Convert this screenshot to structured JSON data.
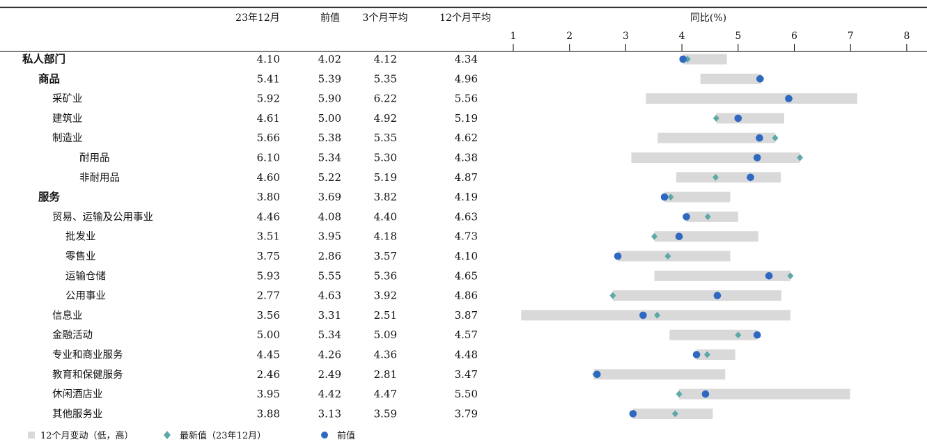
{
  "headers": {
    "col1": "23年12月",
    "col2": "前值",
    "col3": "3个月平均",
    "col4": "12个月平均",
    "chart": "同比(%)"
  },
  "legend": {
    "range": "12个月变动（低，高）",
    "latest": "最新值（23年12月）",
    "prev": "前值"
  },
  "colors": {
    "range_bar": "#d9d9d9",
    "latest_marker": "#5fa8a8",
    "prev_marker": "#2f68c0"
  },
  "rows": [
    {
      "label": "私人部门",
      "level": 0,
      "bold": true,
      "v1": "4.10",
      "v2": "4.02",
      "v3": "4.12",
      "v4": "4.34"
    },
    {
      "label": "商品",
      "level": 1,
      "bold": true,
      "v1": "5.41",
      "v2": "5.39",
      "v3": "5.35",
      "v4": "4.96"
    },
    {
      "label": "采矿业",
      "level": 2,
      "bold": false,
      "v1": "5.92",
      "v2": "5.90",
      "v3": "6.22",
      "v4": "5.56"
    },
    {
      "label": "建筑业",
      "level": 2,
      "bold": false,
      "v1": "4.61",
      "v2": "5.00",
      "v3": "4.92",
      "v4": "5.19"
    },
    {
      "label": "制造业",
      "level": 2,
      "bold": false,
      "v1": "5.66",
      "v2": "5.38",
      "v3": "5.35",
      "v4": "4.62"
    },
    {
      "label": "耐用品",
      "level": 4,
      "bold": false,
      "v1": "6.10",
      "v2": "5.34",
      "v3": "5.30",
      "v4": "4.38"
    },
    {
      "label": "非耐用品",
      "level": 4,
      "bold": false,
      "v1": "4.60",
      "v2": "5.22",
      "v3": "5.19",
      "v4": "4.87"
    },
    {
      "label": "服务",
      "level": 1,
      "bold": true,
      "v1": "3.80",
      "v2": "3.69",
      "v3": "3.82",
      "v4": "4.19"
    },
    {
      "label": "贸易、运输及公用事业",
      "level": 2,
      "bold": false,
      "v1": "4.46",
      "v2": "4.08",
      "v3": "4.40",
      "v4": "4.63"
    },
    {
      "label": "批发业",
      "level": 3,
      "bold": false,
      "v1": "3.51",
      "v2": "3.95",
      "v3": "4.18",
      "v4": "4.73"
    },
    {
      "label": "零售业",
      "level": 3,
      "bold": false,
      "v1": "3.75",
      "v2": "2.86",
      "v3": "3.57",
      "v4": "4.10"
    },
    {
      "label": "运输仓储",
      "level": 3,
      "bold": false,
      "v1": "5.93",
      "v2": "5.55",
      "v3": "5.36",
      "v4": "4.65"
    },
    {
      "label": "公用事业",
      "level": 3,
      "bold": false,
      "v1": "2.77",
      "v2": "4.63",
      "v3": "3.92",
      "v4": "4.86"
    },
    {
      "label": "信息业",
      "level": 2,
      "bold": false,
      "v1": "3.56",
      "v2": "3.31",
      "v3": "2.51",
      "v4": "3.87"
    },
    {
      "label": "金融活动",
      "level": 2,
      "bold": false,
      "v1": "5.00",
      "v2": "5.34",
      "v3": "5.09",
      "v4": "4.57"
    },
    {
      "label": "专业和商业服务",
      "level": 2,
      "bold": false,
      "v1": "4.45",
      "v2": "4.26",
      "v3": "4.36",
      "v4": "4.48"
    },
    {
      "label": "教育和保健服务",
      "level": 2,
      "bold": false,
      "v1": "2.46",
      "v2": "2.49",
      "v3": "2.81",
      "v4": "3.47"
    },
    {
      "label": "休闲酒店业",
      "level": 2,
      "bold": false,
      "v1": "3.95",
      "v2": "4.42",
      "v3": "4.47",
      "v4": "5.50"
    },
    {
      "label": "其他服务业",
      "level": 2,
      "bold": false,
      "v1": "3.88",
      "v2": "3.13",
      "v3": "3.59",
      "v4": "3.79"
    }
  ],
  "chart_data": {
    "type": "bar",
    "title": "同比(%)",
    "xlim": [
      1,
      8
    ],
    "ticks": [
      1,
      2,
      3,
      4,
      5,
      6,
      7,
      8
    ],
    "grid": false,
    "legend_position": "bottom-left",
    "categories": [
      "私人部门",
      "商品",
      "采矿业",
      "建筑业",
      "制造业",
      "耐用品",
      "非耐用品",
      "服务",
      "贸易、运输及公用事业",
      "批发业",
      "零售业",
      "运输仓储",
      "公用事业",
      "信息业",
      "金融活动",
      "专业和商业服务",
      "教育和保健服务",
      "休闲酒店业",
      "其他服务业"
    ],
    "series": [
      {
        "name": "12个月变动（低，高）",
        "values": [
          [
            4.02,
            4.8
          ],
          [
            4.33,
            5.41
          ],
          [
            3.36,
            7.12
          ],
          [
            4.61,
            5.82
          ],
          [
            3.57,
            5.66
          ],
          [
            3.1,
            6.1
          ],
          [
            3.9,
            5.76
          ],
          [
            3.69,
            4.86
          ],
          [
            4.08,
            5.0
          ],
          [
            3.51,
            5.36
          ],
          [
            2.86,
            4.86
          ],
          [
            3.51,
            5.93
          ],
          [
            2.77,
            5.77
          ],
          [
            1.14,
            5.93
          ],
          [
            3.78,
            5.34
          ],
          [
            4.26,
            4.95
          ],
          [
            2.43,
            4.77
          ],
          [
            3.95,
            6.99
          ],
          [
            3.13,
            4.55
          ]
        ]
      },
      {
        "name": "最新值（23年12月）",
        "values": [
          4.1,
          5.41,
          5.92,
          4.61,
          5.66,
          6.1,
          4.6,
          3.8,
          4.46,
          3.51,
          3.75,
          5.93,
          2.77,
          3.56,
          5.0,
          4.45,
          2.46,
          3.95,
          3.88
        ]
      },
      {
        "name": "前值",
        "values": [
          4.02,
          5.39,
          5.9,
          5.0,
          5.38,
          5.34,
          5.22,
          3.69,
          4.08,
          3.95,
          2.86,
          5.55,
          4.63,
          3.31,
          5.34,
          4.26,
          2.49,
          4.42,
          3.13
        ]
      }
    ]
  }
}
